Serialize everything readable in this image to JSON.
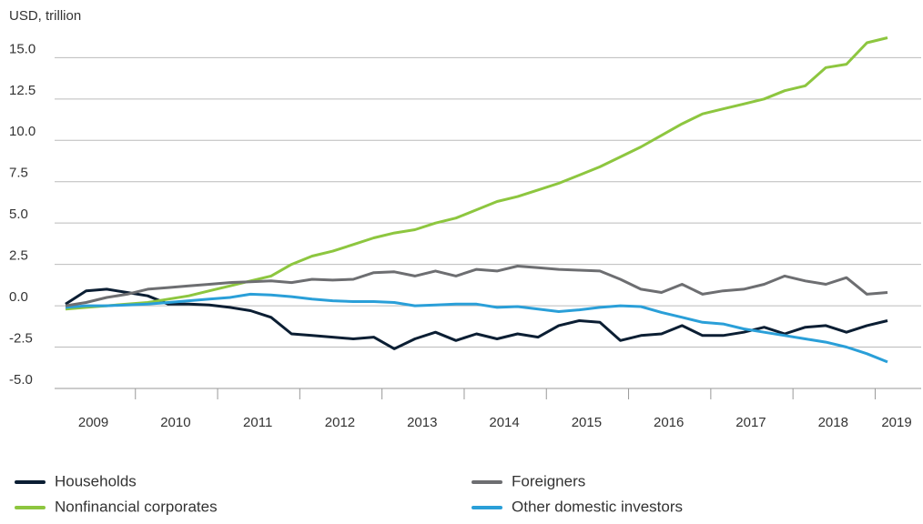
{
  "chart_data": {
    "type": "line",
    "y_label": "USD, trillion",
    "categories": [
      null,
      "2009",
      null,
      null,
      null,
      "2010",
      null,
      null,
      null,
      "2011",
      null,
      null,
      null,
      "2012",
      null,
      null,
      null,
      "2013",
      null,
      null,
      null,
      "2014",
      null,
      null,
      null,
      "2015",
      null,
      null,
      null,
      "2016",
      null,
      null,
      null,
      "2017",
      null,
      null,
      null,
      "2018",
      null,
      null,
      "2019"
    ],
    "ylim": [
      -5,
      17
    ],
    "yticks": [
      {
        "value": -5,
        "label": "-5.0"
      },
      {
        "value": -2.5,
        "label": "-2.5"
      },
      {
        "value": 0,
        "label": "0.0"
      },
      {
        "value": 2.5,
        "label": "2.5"
      },
      {
        "value": 5,
        "label": "5.0"
      },
      {
        "value": 7.5,
        "label": "7.5"
      },
      {
        "value": 10,
        "label": "10.0"
      },
      {
        "value": 12.5,
        "label": "12.5"
      },
      {
        "value": 15,
        "label": "15.0"
      }
    ],
    "grid": true,
    "series": [
      {
        "name": "Households",
        "color": "#0b1e33",
        "values": [
          0.1,
          0.9,
          1.0,
          0.8,
          0.6,
          0.1,
          0.1,
          0.05,
          -0.1,
          -0.3,
          -0.7,
          -1.7,
          -1.8,
          -1.9,
          -2.0,
          -1.9,
          -2.6,
          -2.0,
          -1.6,
          -2.1,
          -1.7,
          -2.0,
          -1.7,
          -1.9,
          -1.2,
          -0.9,
          -1.0,
          -2.1,
          -1.8,
          -1.7,
          -1.2,
          -1.8,
          -1.8,
          -1.6,
          -1.3,
          -1.7,
          -1.3,
          -1.2,
          -1.6,
          -1.2,
          -0.9
        ]
      },
      {
        "name": "Foreigners",
        "color": "#6d6e71",
        "values": [
          0,
          0.2,
          0.5,
          0.7,
          1.0,
          1.1,
          1.2,
          1.3,
          1.4,
          1.45,
          1.5,
          1.4,
          1.6,
          1.55,
          1.6,
          2.0,
          2.05,
          1.8,
          2.1,
          1.8,
          2.2,
          2.1,
          2.4,
          2.3,
          2.2,
          2.15,
          2.1,
          1.6,
          1.0,
          0.8,
          1.3,
          0.7,
          0.9,
          1.0,
          1.3,
          1.8,
          1.5,
          1.3,
          1.7,
          0.7,
          0.8
        ]
      },
      {
        "name": "Nonfinancial corporates",
        "color": "#8dc63f",
        "values": [
          -0.2,
          -0.1,
          0,
          0.1,
          0.2,
          0.4,
          0.6,
          0.9,
          1.2,
          1.5,
          1.8,
          2.5,
          3.0,
          3.3,
          3.7,
          4.1,
          4.4,
          4.6,
          5.0,
          5.3,
          5.8,
          6.3,
          6.6,
          7.0,
          7.4,
          7.9,
          8.4,
          9.0,
          9.6,
          10.3,
          11.0,
          11.6,
          11.9,
          12.2,
          12.5,
          13.0,
          13.3,
          14.4,
          14.6,
          15.9,
          16.2
        ]
      },
      {
        "name": "Other domestic investors",
        "color": "#2a9fd8",
        "values": [
          -0.1,
          0,
          0,
          0.05,
          0.1,
          0.2,
          0.3,
          0.4,
          0.5,
          0.7,
          0.65,
          0.55,
          0.4,
          0.3,
          0.25,
          0.25,
          0.2,
          0,
          0.05,
          0.1,
          0.1,
          -0.1,
          -0.05,
          -0.2,
          -0.35,
          -0.25,
          -0.1,
          0,
          -0.05,
          -0.4,
          -0.7,
          -1.0,
          -1.1,
          -1.4,
          -1.6,
          -1.8,
          -2.0,
          -2.2,
          -2.5,
          -2.9,
          -3.4
        ]
      }
    ]
  }
}
